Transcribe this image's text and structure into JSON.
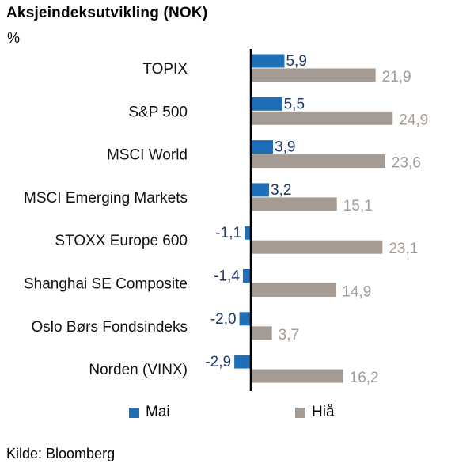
{
  "chart_data": {
    "type": "bar",
    "orientation": "horizontal",
    "title": "Aksjeindeksutvikling (NOK)",
    "ylabel": "%",
    "categories": [
      "TOPIX",
      "S&P 500",
      "MSCI World",
      "MSCI Emerging Markets",
      "STOXX Europe 600",
      "Shanghai SE Composite",
      "Oslo Børs Fondsindeks",
      "Norden (VINX)"
    ],
    "series": [
      {
        "name": "Mai",
        "color": "#1f6fb8",
        "label_color": "#1f3864",
        "values": [
          5.9,
          5.5,
          3.9,
          3.2,
          -1.1,
          -1.4,
          -2.0,
          -2.9
        ],
        "labels": [
          "5,9",
          "5,5",
          "3,9",
          "3,2",
          "-1,1",
          "-1,4",
          "-2,0",
          "-2,9"
        ]
      },
      {
        "name": "Hiå",
        "color": "#a69b92",
        "label_color": "#a69b92",
        "values": [
          21.9,
          24.9,
          23.6,
          15.1,
          23.1,
          14.9,
          3.7,
          16.2
        ],
        "labels": [
          "21,9",
          "24,9",
          "23,6",
          "15,1",
          "23,1",
          "14,9",
          "3,7",
          "16,2"
        ]
      }
    ],
    "legend_position": "bottom",
    "grid": false
  },
  "source": "Kilde: Bloomberg"
}
